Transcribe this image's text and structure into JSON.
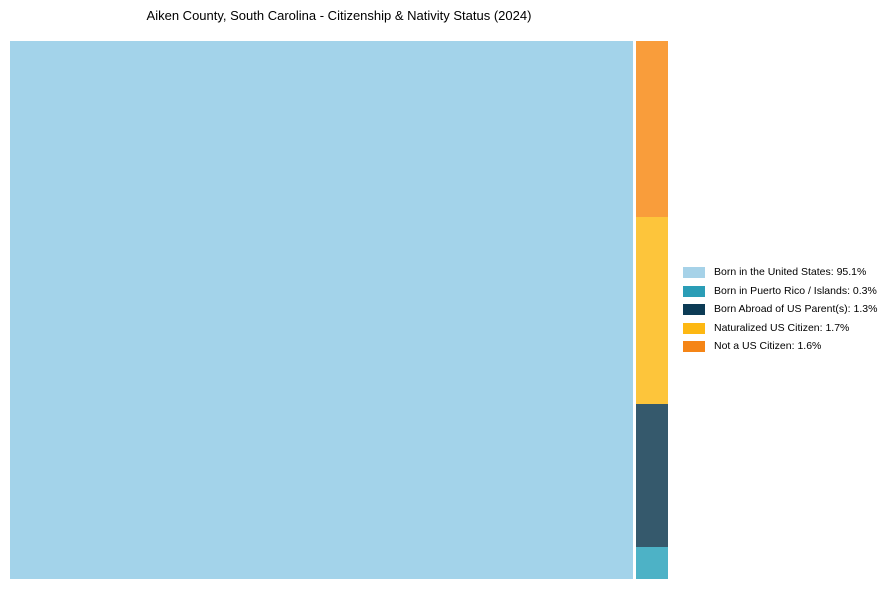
{
  "title": "Aiken County, South Carolina - Citizenship & Nativity Status (2024)",
  "colors": {
    "background": "#ffffff",
    "text": "#000000"
  },
  "chart_data": {
    "type": "treemap",
    "title": "Aiken County, South Carolina - Citizenship & Nativity Status (2024)",
    "categories": [
      "Born in the United States",
      "Born in Puerto Rico / Islands",
      "Born Abroad of US Parent(s)",
      "Naturalized US Citizen",
      "Not a US Citizen"
    ],
    "values": [
      95.1,
      0.3,
      1.3,
      1.7,
      1.6
    ],
    "unit": "%",
    "tile_colors": [
      "#A3D3EA",
      "#4DB2C6",
      "#35596C",
      "#FDC53B",
      "#F99D3B"
    ],
    "legend_colors": [
      "#A6D2E8",
      "#2A9DB6",
      "#0C3B55",
      "#FDB813",
      "#F58516"
    ],
    "legend_labels": [
      "Born in the United States: 95.1%",
      "Born in Puerto Rico / Islands: 0.3%",
      "Born Abroad of US Parent(s): 1.3%",
      "Naturalized US Citizen: 1.7%",
      "Not a US Citizen: 1.6%"
    ],
    "layout_hints": {
      "legend_position": "right",
      "grid": false,
      "structure": "largest category as full-height left tile; remaining categories stacked in a narrow right column, top-to-bottom in reverse list order"
    }
  }
}
